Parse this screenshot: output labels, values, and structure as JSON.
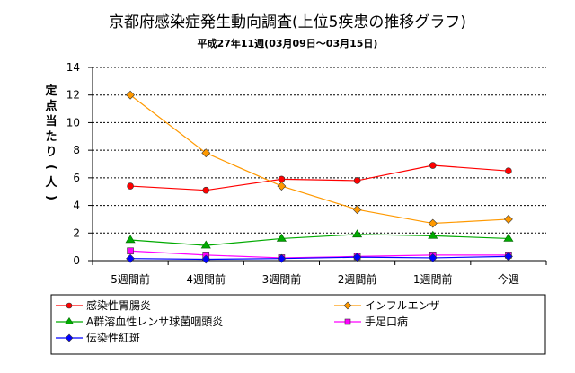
{
  "chart_data": {
    "type": "line",
    "title": "京都府感染症発生動向調査(上位5疾患の推移グラフ)",
    "subtitle": "平成27年11週(03月09日～03月15日)",
    "ylabel": "定点当たり(人)",
    "xlabel": "",
    "categories": [
      "5週間前",
      "4週間前",
      "3週間前",
      "2週間前",
      "1週間前",
      "今週"
    ],
    "ylim": [
      0,
      14
    ],
    "yticks": [
      0,
      2,
      4,
      6,
      8,
      10,
      12,
      14
    ],
    "grid": true,
    "legend_position": "bottom",
    "series": [
      {
        "name": "感染性胃腸炎",
        "values": [
          5.4,
          5.1,
          5.9,
          5.8,
          6.9,
          6.5
        ],
        "color": "#ff0000",
        "marker": "circle"
      },
      {
        "name": "インフルエンザ",
        "values": [
          12.0,
          7.8,
          5.4,
          3.7,
          2.7,
          3.0
        ],
        "color": "#ff9900",
        "marker": "diamond"
      },
      {
        "name": "A群溶血性レンサ球菌咽頭炎",
        "values": [
          1.5,
          1.1,
          1.6,
          1.9,
          1.8,
          1.6
        ],
        "color": "#00aa00",
        "marker": "triangle"
      },
      {
        "name": "手足口病",
        "values": [
          0.7,
          0.4,
          0.2,
          0.3,
          0.4,
          0.4
        ],
        "color": "#ff00ff",
        "marker": "square"
      },
      {
        "name": "伝染性紅斑",
        "values": [
          0.15,
          0.1,
          0.15,
          0.25,
          0.2,
          0.3
        ],
        "color": "#0000ff",
        "marker": "diamond"
      }
    ]
  }
}
